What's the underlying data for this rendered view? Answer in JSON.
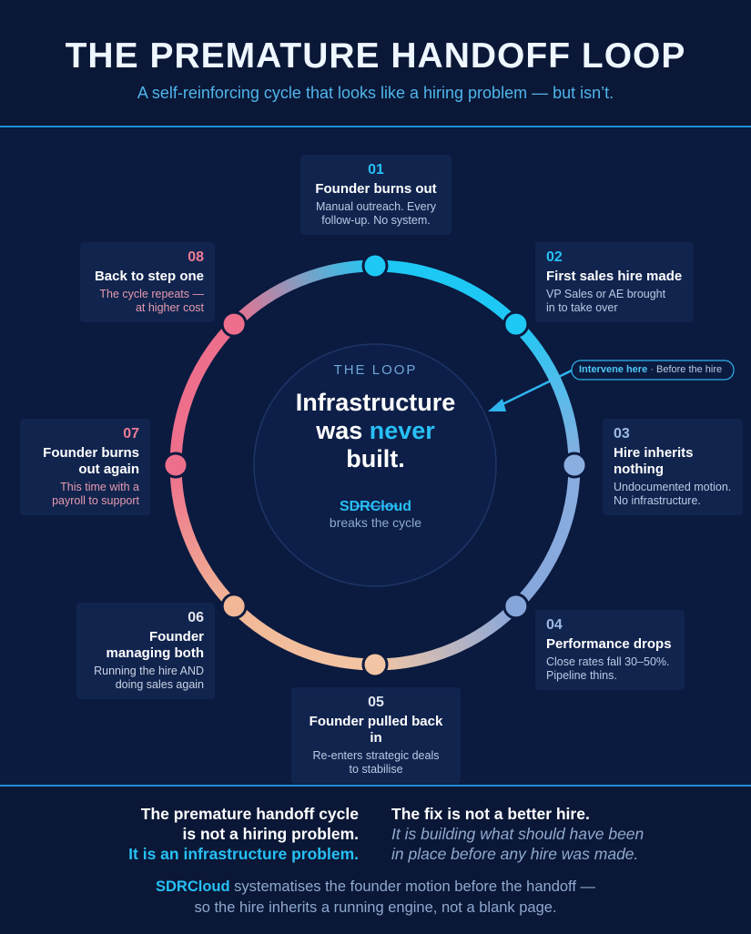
{
  "header": {
    "title": "THE PREMATURE HANDOFF LOOP",
    "subtitle": "A self-reinforcing cycle that looks like a hiring problem — but isn’t."
  },
  "center": {
    "label": "THE LOOP",
    "headline": [
      "Infrastructure",
      "was",
      "never",
      "built."
    ],
    "brand": "SDRCloud",
    "tagline": "breaks the cycle"
  },
  "callout": {
    "strong": "Intervene here",
    "text": "· Before the hire"
  },
  "steps": [
    {
      "number": "01",
      "title": [
        "Founder burns out"
      ],
      "description": [
        "Manual outreach. Every",
        "follow-up. No system."
      ]
    },
    {
      "number": "02",
      "title": [
        "First sales hire made"
      ],
      "description": [
        "VP Sales or AE brought",
        "in to take over"
      ]
    },
    {
      "number": "03",
      "title": [
        "Hire inherits",
        "nothing"
      ],
      "description": [
        "Undocumented motion.",
        "No infrastructure."
      ]
    },
    {
      "number": "04",
      "title": [
        "Performance drops"
      ],
      "description": [
        "Close rates fall 30–50%.",
        "Pipeline thins."
      ]
    },
    {
      "number": "05",
      "title": [
        "Founder pulled back in"
      ],
      "description": [
        "Re-enters strategic deals",
        "to stabilise"
      ]
    },
    {
      "number": "06",
      "title": [
        "Founder",
        "managing both"
      ],
      "description": [
        "Running the hire AND",
        "doing sales again"
      ]
    },
    {
      "number": "07",
      "title": [
        "Founder burns",
        "out again"
      ],
      "description": [
        "This time with a",
        "payroll to support"
      ]
    },
    {
      "number": "08",
      "title": [
        "Back to step one"
      ],
      "description": [
        "The cycle repeats —",
        "at higher cost"
      ]
    }
  ],
  "footer": {
    "left": [
      "The premature handoff cycle",
      "is not a hiring problem.",
      "It is an infrastructure problem."
    ],
    "right": [
      "The fix is not a better hire.",
      "It is building what should have been",
      "in place before any hire was made."
    ],
    "bottom": {
      "brand": "SDRCloud",
      "line1": "systematises the founder motion before the handoff —",
      "line2": "so the hire inherits a running engine, not a blank page."
    }
  }
}
